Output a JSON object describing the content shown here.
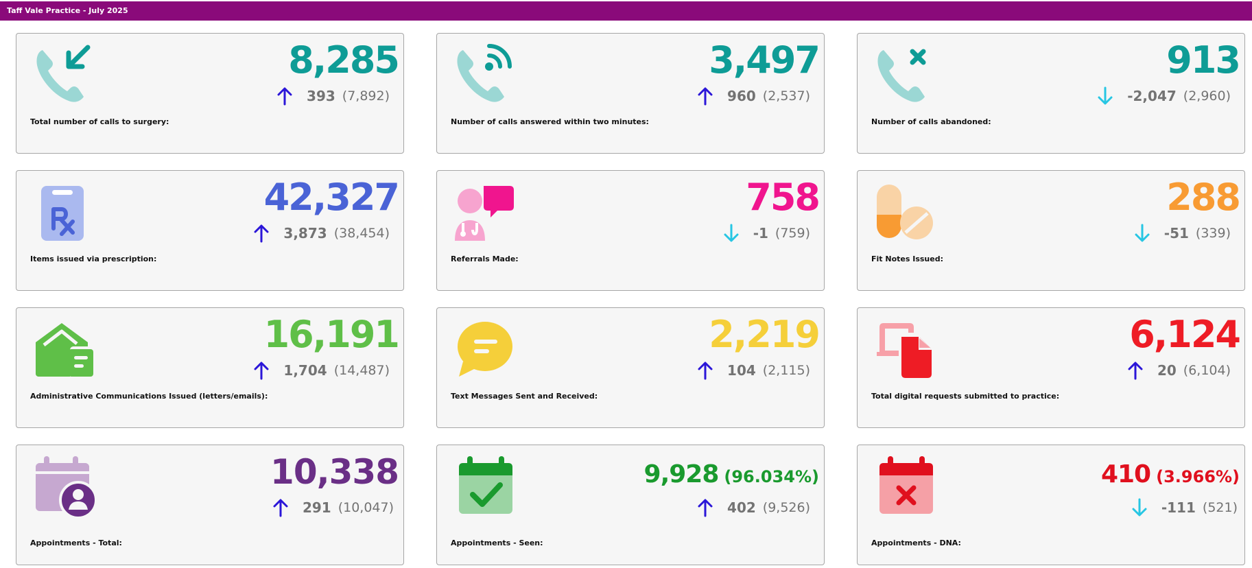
{
  "header": {
    "title": "Taff Vale Practice - July 2025",
    "background": "#8a0a7a"
  },
  "cards": [
    {
      "label": "Total number of calls to surgery:",
      "value": "8,285",
      "delta": "393",
      "previous": "(7,892)",
      "trend": "up",
      "color": "#0e9c96",
      "icon": "incoming-call-icon"
    },
    {
      "label": "Number of calls answered within two minutes:",
      "value": "3,497",
      "delta": "960",
      "previous": "(2,537)",
      "trend": "up",
      "color": "#0e9c96",
      "icon": "phone-ringing-icon"
    },
    {
      "label": "Number of calls abandoned:",
      "value": "913",
      "delta": "-2,047",
      "previous": "(2,960)",
      "trend": "down",
      "color": "#0e9c96",
      "icon": "missed-call-icon"
    },
    {
      "label": "Items issued via prescription:",
      "value": "42,327",
      "delta": "3,873",
      "previous": "(38,454)",
      "trend": "up",
      "color": "#4a63d6",
      "icon": "prescription-icon"
    },
    {
      "label": "Referrals Made:",
      "value": "758",
      "delta": "-1",
      "previous": "(759)",
      "trend": "down",
      "color": "#f0158e",
      "icon": "doctor-consultation-icon"
    },
    {
      "label": "Fit Notes Issued:",
      "value": "288",
      "delta": "-51",
      "previous": "(339)",
      "trend": "down",
      "color": "#f89b33",
      "icon": "pills-icon"
    },
    {
      "label": "Administrative Communications Issued (letters/emails):",
      "value": "16,191",
      "delta": "1,704",
      "previous": "(14,487)",
      "trend": "up",
      "color": "#5fbf48",
      "icon": "mail-house-icon"
    },
    {
      "label": "Text Messages Sent and Received:",
      "value": "2,219",
      "delta": "104",
      "previous": "(2,115)",
      "trend": "up",
      "color": "#f5cf3a",
      "icon": "chat-bubble-icon"
    },
    {
      "label": "Total digital requests submitted to practice:",
      "value": "6,124",
      "delta": "20",
      "previous": "(6,104)",
      "trend": "up",
      "color": "#ee1c25",
      "icon": "digital-document-icon"
    },
    {
      "label": "Appointments - Total:",
      "value": "10,338",
      "delta": "291",
      "previous": "(10,047)",
      "trend": "up",
      "color": "#6a2f86",
      "icon": "calendar-user-icon"
    },
    {
      "label": "Appointments - Seen:",
      "value": "9,928",
      "percent": "(96.034%)",
      "delta": "402",
      "previous": "(9,526)",
      "trend": "up",
      "color": "#1a9a2e",
      "icon": "calendar-check-icon"
    },
    {
      "label": "Appointments - DNA:",
      "value": "410",
      "percent": "(3.966%)",
      "delta": "-111",
      "previous": "(521)",
      "trend": "down",
      "color": "#e0101e",
      "icon": "calendar-cross-icon"
    }
  ],
  "trend_colors": {
    "up": "#2b16d8",
    "down": "#27c6e3"
  }
}
